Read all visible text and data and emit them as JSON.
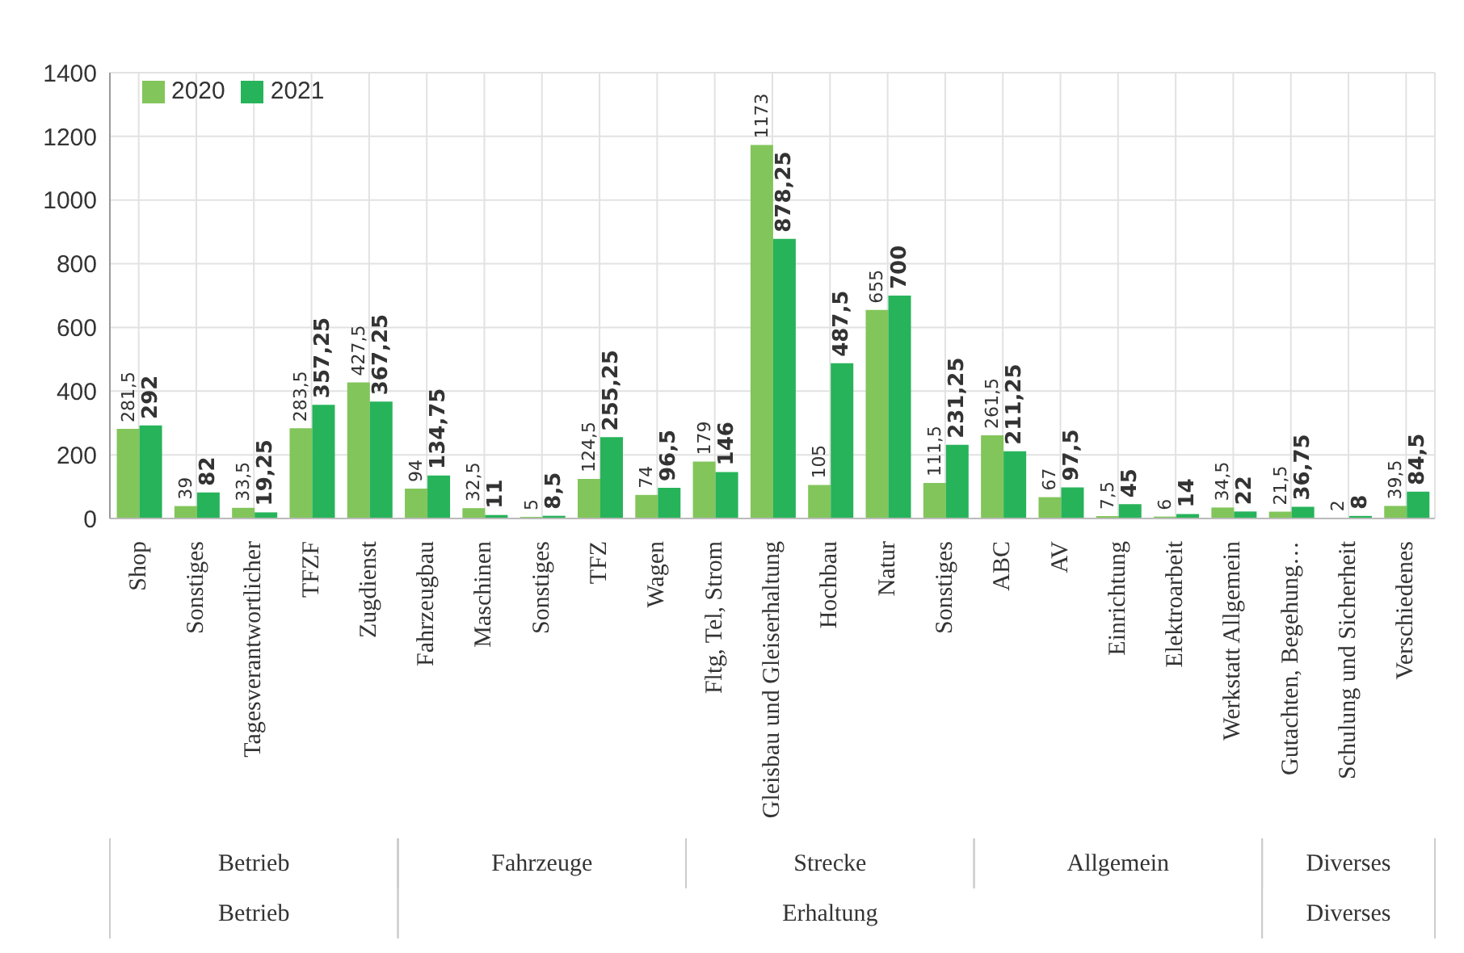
{
  "chart_data": {
    "type": "bar",
    "categories": [
      "Shop",
      "Sonstiges",
      "Tagesverantwortlicher",
      "TFZF",
      "Zugdienst",
      "Fahrzeugbau",
      "Maschinen",
      "Sonstiges",
      "TFZ",
      "Wagen",
      "Fltg, Tel, Strom",
      "Gleisbau und Gleiserhaltung",
      "Hochbau",
      "Natur",
      "Sonstiges",
      "ABC",
      "AV",
      "Einrichtung",
      "Elektroarbeit",
      "Werkstatt Allgemein",
      "Gutachten, Begehung…",
      "Schulung und Sicherheit",
      "Verschiedenes"
    ],
    "series": [
      {
        "name": "2020",
        "color": "#82c55b",
        "values": [
          281.5,
          39,
          33.5,
          283.5,
          427.5,
          94,
          32.5,
          5,
          124.5,
          74,
          179,
          1173,
          105,
          655,
          111.5,
          261.5,
          67,
          7.5,
          6,
          34.5,
          21.5,
          2,
          39.5
        ],
        "value_labels": [
          "281,5",
          "39",
          "33,5",
          "283,5",
          "427,5",
          "94",
          "32,5",
          "5",
          "124,5",
          "74",
          "179",
          "1173",
          "105",
          "655",
          "111,5",
          "261,5",
          "67",
          "7,5",
          "6",
          "34,5",
          "21,5",
          "2",
          "39,5"
        ]
      },
      {
        "name": "2021",
        "color": "#27b35a",
        "values": [
          292,
          82,
          19.25,
          357.25,
          367.25,
          134.75,
          11,
          8.5,
          255.25,
          96.5,
          146,
          878.25,
          487.5,
          700,
          231.25,
          211.25,
          97.5,
          45,
          14,
          22,
          36.75,
          8,
          84.5
        ],
        "value_labels": [
          "292",
          "82",
          "19,25",
          "357,25",
          "367,25",
          "134,75",
          "11",
          "8,5",
          "255,25",
          "96,5",
          "146",
          "878,25",
          "487,5",
          "700",
          "231,25",
          "211,25",
          "97,5",
          "45",
          "14",
          "22",
          "36,75",
          "8",
          "84,5"
        ]
      }
    ],
    "ylim": [
      0,
      1400
    ],
    "yticks": [
      0,
      200,
      400,
      600,
      800,
      1000,
      1200,
      1400
    ],
    "grid": true,
    "legend": "top left",
    "annotations": [
      "Betrieb",
      "Fahrzeuge",
      "Strecke",
      "Allgemein",
      "Diverses",
      "Betrieb",
      "Erhaltung",
      "Diverses"
    ]
  }
}
